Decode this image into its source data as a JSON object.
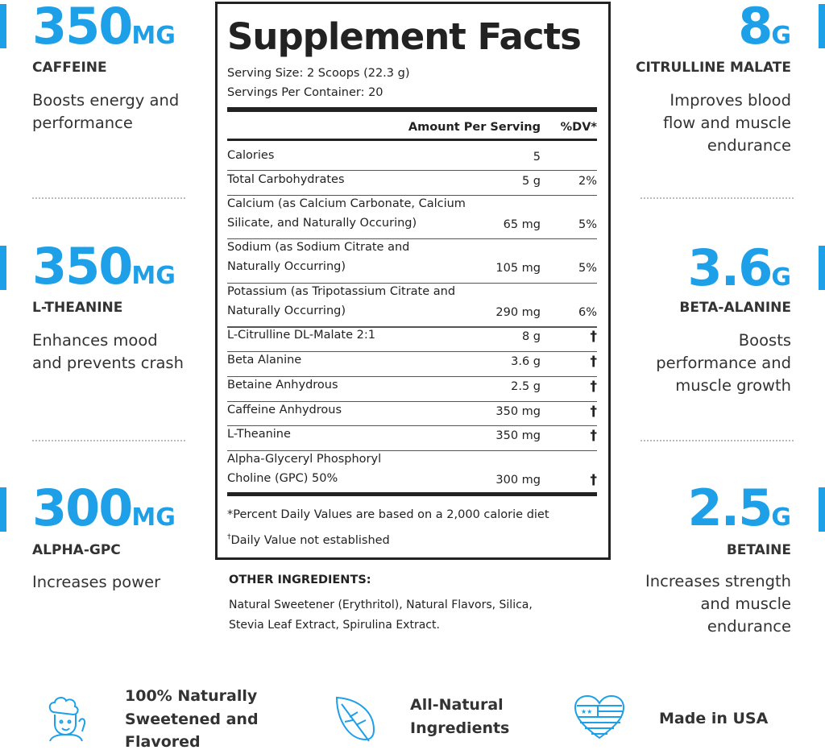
{
  "colors": {
    "accent": "#1ea0e8",
    "text": "#333333"
  },
  "left": [
    {
      "value": "350",
      "unit": "MG",
      "name": "CAFFEINE",
      "desc": "Boosts energy and performance"
    },
    {
      "value": "350",
      "unit": "MG",
      "name": "L-THEANINE",
      "desc": "Enhances mood and prevents crash"
    },
    {
      "value": "300",
      "unit": "MG",
      "name": "ALPHA-GPC",
      "desc": "Increases power"
    }
  ],
  "right": [
    {
      "value": "8",
      "unit": "G",
      "name": "CITRULLINE MALATE",
      "desc": "Improves blood flow and muscle endurance"
    },
    {
      "value": "3.6",
      "unit": "G",
      "name": "BETA-ALANINE",
      "desc": "Boosts performance and muscle growth"
    },
    {
      "value": "2.5",
      "unit": "G",
      "name": "BETAINE",
      "desc": "Increases strength and muscle endurance"
    }
  ],
  "facts": {
    "title": "Supplement Facts",
    "serving_size": "Serving Size: 2 Scoops (22.3 g)",
    "servings_per_container": "Servings Per Container: 20",
    "header_amount": "Amount Per Serving",
    "header_dv": "%DV*",
    "rows": [
      {
        "name": "Calories",
        "amount": "5",
        "dv": ""
      },
      {
        "name": "Total Carbohydrates",
        "amount": "5 g",
        "dv": "2%"
      },
      {
        "name": "Calcium (as Calcium Carbonate, Calcium",
        "name2": "Silicate, and Naturally Occuring)",
        "amount": "65 mg",
        "dv": "5%"
      },
      {
        "name": "Sodium (as Sodium Citrate and",
        "name2": "Naturally Occurring)",
        "amount": "105 mg",
        "dv": "5%"
      },
      {
        "name": "Potassium (as Tripotassium Citrate and",
        "name2": "Naturally Occurring)",
        "amount": "290 mg",
        "dv": "6%"
      },
      {
        "name": "L-Citrulline DL-Malate 2:1",
        "amount": "8 g",
        "dv": "†"
      },
      {
        "name": "Beta Alanine",
        "amount": "3.6 g",
        "dv": "†"
      },
      {
        "name": "Betaine Anhydrous",
        "amount": "2.5 g",
        "dv": "†"
      },
      {
        "name": "Caffeine Anhydrous",
        "amount": "350 mg",
        "dv": "†"
      },
      {
        "name": "L-Theanine",
        "amount": "350 mg",
        "dv": "†"
      },
      {
        "name": "Alpha-Glyceryl Phosphoryl",
        "name2": "Choline (GPC) 50%",
        "amount": "300 mg",
        "dv": "†"
      }
    ],
    "footnote1": "*Percent Daily Values are based on a 2,000 calorie diet",
    "footnote2_mark": "†",
    "footnote2": "Daily Value not established"
  },
  "other": {
    "title": "OTHER INGREDIENTS:",
    "line1": "Natural Sweetener (Erythritol), Natural Flavors, Silica,",
    "line2": "Stevia Leaf Extract, Spirulina Extract."
  },
  "features": [
    {
      "icon": "chef-icon",
      "label": "100% Naturally Sweetened and Flavored"
    },
    {
      "icon": "leaf-icon",
      "label": "All-Natural Ingredients"
    },
    {
      "icon": "usa-heart-icon",
      "label": "Made in USA"
    }
  ]
}
